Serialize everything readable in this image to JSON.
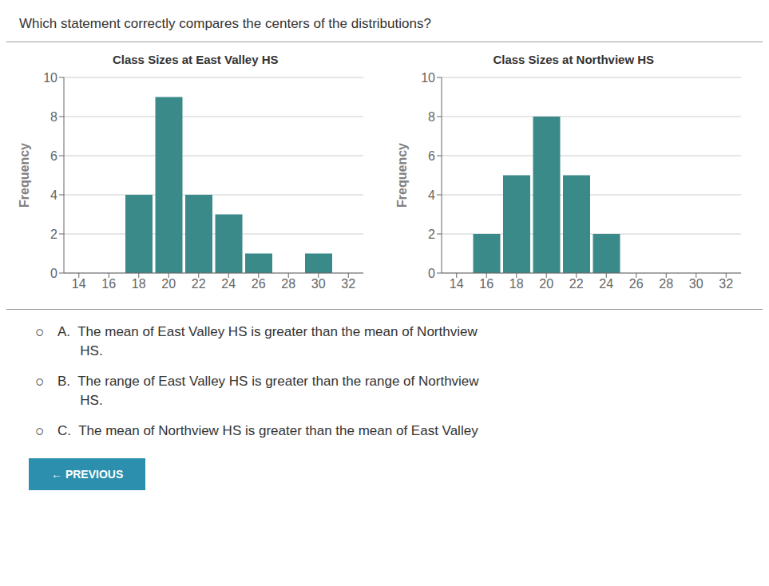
{
  "title": "Which statement correctly compares the centers of the distributions?",
  "chart_data": [
    {
      "type": "bar",
      "title": "Class Sizes at East Valley HS",
      "x": [
        14,
        16,
        18,
        20,
        22,
        24,
        26,
        28,
        30,
        32
      ],
      "values": [
        0,
        0,
        4,
        9,
        4,
        3,
        1,
        0,
        1,
        0
      ],
      "color": "#3a8a8a",
      "xlim": [
        13,
        33
      ],
      "xticks": [
        14,
        16,
        18,
        20,
        22,
        24,
        26,
        28,
        30,
        32
      ],
      "ylim": [
        0,
        10
      ],
      "yticks": [
        0,
        2,
        4,
        6,
        8,
        10
      ],
      "ylabel": "Frequency",
      "grid": true
    },
    {
      "type": "bar",
      "title": "Class Sizes at Northview HS",
      "x": [
        14,
        16,
        18,
        20,
        22,
        24,
        26,
        28,
        30,
        32
      ],
      "values": [
        0,
        2,
        5,
        8,
        5,
        2,
        0,
        0,
        0,
        0
      ],
      "color": "#3a8a8a",
      "xlim": [
        13,
        33
      ],
      "xticks": [
        14,
        16,
        18,
        20,
        22,
        24,
        26,
        28,
        30,
        32
      ],
      "ylim": [
        0,
        10
      ],
      "yticks": [
        0,
        2,
        4,
        6,
        8,
        10
      ],
      "ylabel": "Frequency",
      "grid": true
    }
  ],
  "annotations": [
    {
      "symbol": "○",
      "text": [
        "A.  The mean of East Valley HS is greater than the mean of Northview",
        "      HS."
      ]
    },
    {
      "symbol": "○",
      "text": [
        "B.  The range of East Valley HS is greater than the range of Northview",
        "      HS."
      ]
    },
    {
      "symbol": "○",
      "text": [
        "C.  The mean of Northview HS is greater than the mean of East Valley"
      ]
    }
  ],
  "button": "← PREVIOUS"
}
